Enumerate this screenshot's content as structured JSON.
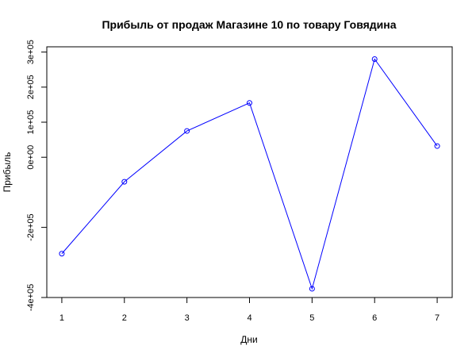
{
  "chart_data": {
    "type": "line",
    "title": "Прибыль от продаж Магазине 10 по товару Говядина",
    "xlabel": "Дни",
    "ylabel": "Прибыль",
    "x": [
      1,
      2,
      3,
      4,
      5,
      6,
      7
    ],
    "xlim": [
      0.76,
      7.24
    ],
    "ylim": [
      -400000,
      315000
    ],
    "x_ticks": [
      1,
      2,
      3,
      4,
      5,
      6,
      7
    ],
    "x_tick_labels": [
      "1",
      "2",
      "3",
      "4",
      "5",
      "6",
      "7"
    ],
    "y_ticks": [
      -400000,
      -200000,
      0,
      100000,
      200000,
      300000
    ],
    "y_tick_labels": [
      "-4e+05",
      "-2e+05",
      "0e+00",
      "1e+05",
      "2e+05",
      "3e+05"
    ],
    "grid": false,
    "series": [
      {
        "values": [
          -275000,
          -70000,
          75000,
          155000,
          -375000,
          280000,
          32000
        ],
        "color": "#0000ff",
        "marker": "open-circle"
      }
    ]
  }
}
